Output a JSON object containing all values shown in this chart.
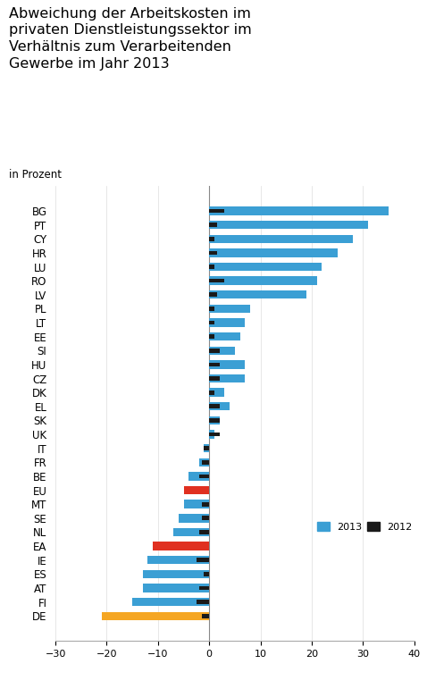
{
  "title": "Abweichung der Arbeitskosten im\nprivaten Dienstleistungssektor im\nVerhältnis zum Verarbeitenden\nGewerbe im Jahr 2013",
  "subtitle": "in Prozent",
  "categories": [
    "BG",
    "PT",
    "CY",
    "HR",
    "LU",
    "RO",
    "LV",
    "PL",
    "LT",
    "EE",
    "SI",
    "HU",
    "CZ",
    "DK",
    "EL",
    "SK",
    "UK",
    "IT",
    "FR",
    "BE",
    "EU",
    "MT",
    "SE",
    "NL",
    "EA",
    "IE",
    "ES",
    "AT",
    "FI",
    "DE"
  ],
  "values_2013": [
    35,
    31,
    28,
    25,
    22,
    21,
    19,
    8,
    7,
    6,
    5,
    7,
    7,
    3,
    4,
    2,
    1,
    -1,
    -2,
    -4,
    -5,
    -5,
    -6,
    -7,
    -11,
    -12,
    -13,
    -13,
    -15,
    -21
  ],
  "values_2012": [
    3,
    1.5,
    1,
    1.5,
    1,
    3,
    1.5,
    1,
    1,
    1,
    2,
    2,
    2,
    1,
    2,
    2,
    2,
    -1,
    -1.5,
    -2,
    0,
    -1.5,
    -1.5,
    -2,
    0,
    -2.5,
    -1,
    -2,
    -2.5,
    -1.5
  ],
  "bar2013_colors": [
    "#3b9fd4",
    "#3b9fd4",
    "#3b9fd4",
    "#3b9fd4",
    "#3b9fd4",
    "#3b9fd4",
    "#3b9fd4",
    "#3b9fd4",
    "#3b9fd4",
    "#3b9fd4",
    "#3b9fd4",
    "#3b9fd4",
    "#3b9fd4",
    "#3b9fd4",
    "#3b9fd4",
    "#3b9fd4",
    "#3b9fd4",
    "#3b9fd4",
    "#3b9fd4",
    "#3b9fd4",
    "#e03020",
    "#3b9fd4",
    "#3b9fd4",
    "#3b9fd4",
    "#e03020",
    "#3b9fd4",
    "#3b9fd4",
    "#3b9fd4",
    "#3b9fd4",
    "#f5a623"
  ],
  "bar2012_color": "#1a1a1a",
  "xlim": [
    -30,
    40
  ],
  "xticks": [
    -30,
    -20,
    -10,
    0,
    10,
    20,
    30,
    40
  ],
  "background_color": "#ffffff"
}
